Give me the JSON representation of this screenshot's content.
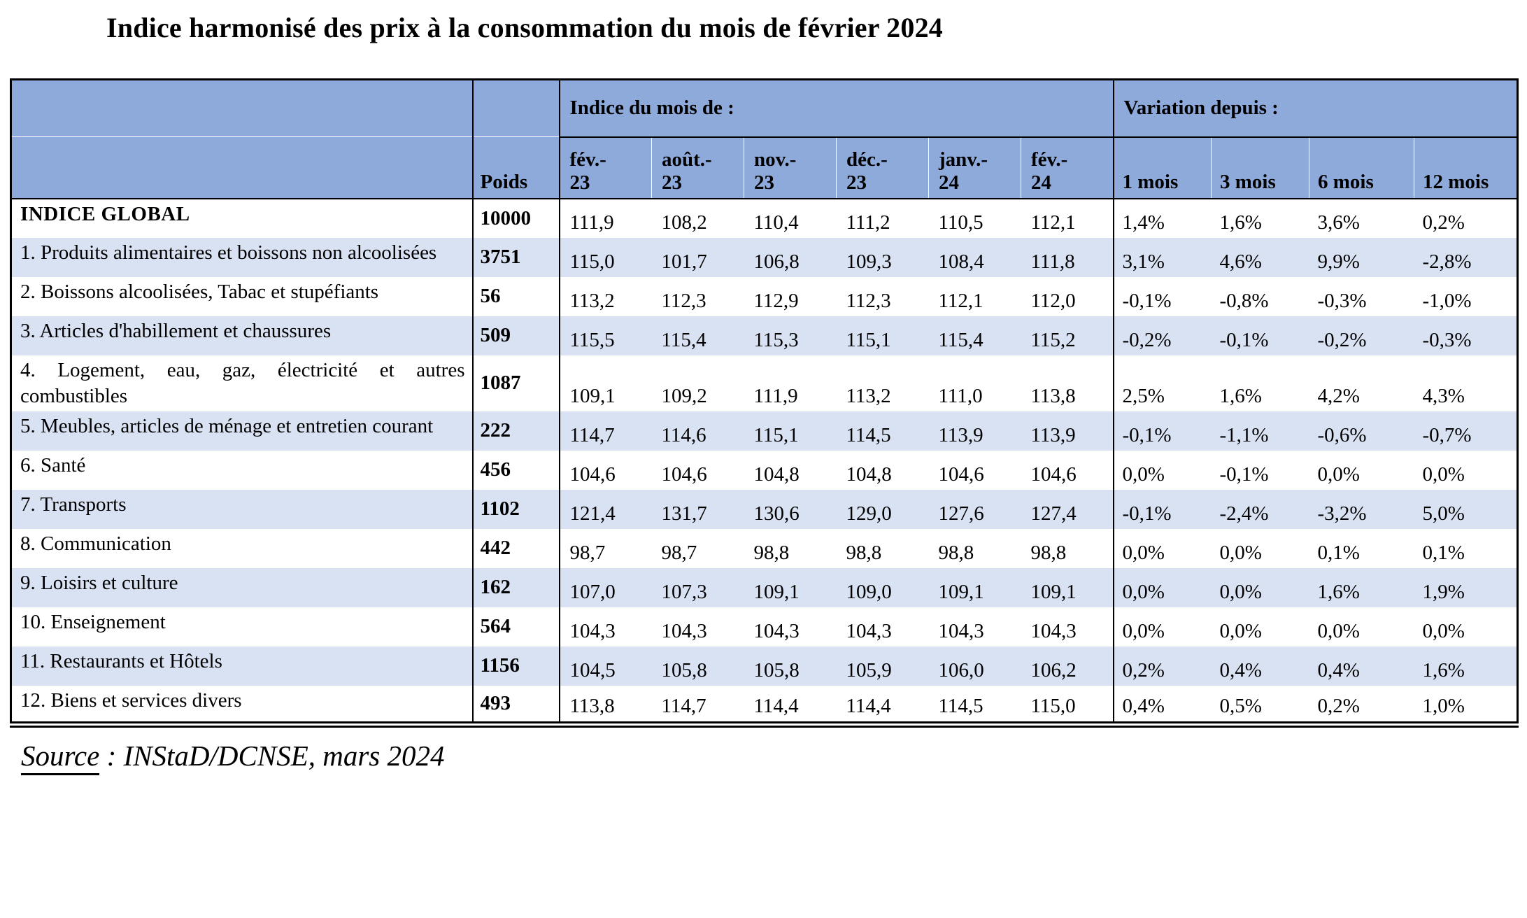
{
  "page": {
    "title": "Indice harmonisé des prix à la consommation du mois de février 2024",
    "source_label": "Source",
    "source_text": " : INStaD/DCNSE, mars 2024"
  },
  "colors": {
    "header_bg": "#8EAADB",
    "alt_row_bg": "#D9E2F3",
    "border": "#000000",
    "text": "#000000"
  },
  "table": {
    "poids_label": "Poids",
    "index_group_label": "Indice du mois de :",
    "variation_group_label": "Variation depuis :",
    "month_columns": [
      "fév.-\n23",
      "août.-\n23",
      "nov.-\n23",
      "déc.-\n23",
      "janv.-\n24",
      "fév.-\n24"
    ],
    "variation_columns": [
      "1 mois",
      "3 mois",
      "6 mois",
      "12 mois"
    ],
    "rows": [
      {
        "label": "INDICE GLOBAL",
        "bold": true,
        "poids": "10000",
        "indices": [
          "111,9",
          "108,2",
          "110,4",
          "111,2",
          "110,5",
          "112,1"
        ],
        "variations": [
          "1,4%",
          "1,6%",
          "3,6%",
          "0,2%"
        ]
      },
      {
        "label": "1. Produits alimentaires et boissons non alcoolisées",
        "bold": false,
        "poids": "3751",
        "indices": [
          "115,0",
          "101,7",
          "106,8",
          "109,3",
          "108,4",
          "111,8"
        ],
        "variations": [
          "3,1%",
          "4,6%",
          "9,9%",
          "-2,8%"
        ]
      },
      {
        "label": "2. Boissons alcoolisées, Tabac et stupéfiants",
        "bold": false,
        "poids": "56",
        "indices": [
          "113,2",
          "112,3",
          "112,9",
          "112,3",
          "112,1",
          "112,0"
        ],
        "variations": [
          "-0,1%",
          "-0,8%",
          "-0,3%",
          "-1,0%"
        ]
      },
      {
        "label": "3. Articles d'habillement et chaussures",
        "bold": false,
        "poids": "509",
        "indices": [
          "115,5",
          "115,4",
          "115,3",
          "115,1",
          "115,4",
          "115,2"
        ],
        "variations": [
          "-0,2%",
          "-0,1%",
          "-0,2%",
          "-0,3%"
        ]
      },
      {
        "label": "4. Logement, eau, gaz, électricité et autres combustibles",
        "bold": false,
        "poids": "1087",
        "indices": [
          "109,1",
          "109,2",
          "111,9",
          "113,2",
          "111,0",
          "113,8"
        ],
        "variations": [
          "2,5%",
          "1,6%",
          "4,2%",
          "4,3%"
        ]
      },
      {
        "label": "5. Meubles, articles de ménage et entretien courant",
        "bold": false,
        "poids": "222",
        "indices": [
          "114,7",
          "114,6",
          "115,1",
          "114,5",
          "113,9",
          "113,9"
        ],
        "variations": [
          "-0,1%",
          "-1,1%",
          "-0,6%",
          "-0,7%"
        ]
      },
      {
        "label": "6. Santé",
        "bold": false,
        "poids": "456",
        "indices": [
          "104,6",
          "104,6",
          "104,8",
          "104,8",
          "104,6",
          "104,6"
        ],
        "variations": [
          "0,0%",
          "-0,1%",
          "0,0%",
          "0,0%"
        ]
      },
      {
        "label": "7. Transports",
        "bold": false,
        "poids": "1102",
        "indices": [
          "121,4",
          "131,7",
          "130,6",
          "129,0",
          "127,6",
          "127,4"
        ],
        "variations": [
          "-0,1%",
          "-2,4%",
          "-3,2%",
          "5,0%"
        ]
      },
      {
        "label": "8. Communication",
        "bold": false,
        "poids": "442",
        "indices": [
          "98,7",
          "98,7",
          "98,8",
          "98,8",
          "98,8",
          "98,8"
        ],
        "variations": [
          "0,0%",
          "0,0%",
          "0,1%",
          "0,1%"
        ]
      },
      {
        "label": "9. Loisirs et culture",
        "bold": false,
        "poids": "162",
        "indices": [
          "107,0",
          "107,3",
          "109,1",
          "109,0",
          "109,1",
          "109,1"
        ],
        "variations": [
          "0,0%",
          "0,0%",
          "1,6%",
          "1,9%"
        ]
      },
      {
        "label": "10. Enseignement",
        "bold": false,
        "poids": "564",
        "indices": [
          "104,3",
          "104,3",
          "104,3",
          "104,3",
          "104,3",
          "104,3"
        ],
        "variations": [
          "0,0%",
          "0,0%",
          "0,0%",
          "0,0%"
        ]
      },
      {
        "label": "11. Restaurants et Hôtels",
        "bold": false,
        "poids": "1156",
        "indices": [
          "104,5",
          "105,8",
          "105,8",
          "105,9",
          "106,0",
          "106,2"
        ],
        "variations": [
          "0,2%",
          "0,4%",
          "0,4%",
          "1,6%"
        ]
      },
      {
        "label": "12. Biens et services divers",
        "bold": false,
        "poids": "493",
        "indices": [
          "113,8",
          "114,7",
          "114,4",
          "114,4",
          "114,5",
          "115,0"
        ],
        "variations": [
          "0,4%",
          "0,5%",
          "0,2%",
          "1,0%"
        ]
      }
    ]
  }
}
